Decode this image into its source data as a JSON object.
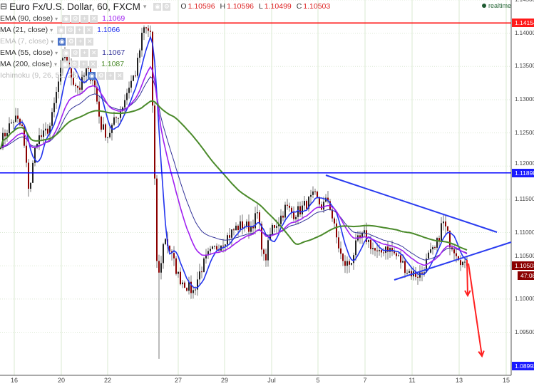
{
  "header": {
    "symbol": "Euro Fx/U.S. Dollar, 60, FXCM",
    "ohlc": {
      "o_label": "O",
      "o": "1.10596",
      "h_label": "H",
      "h": "1.10596",
      "l_label": "L",
      "l": "1.10499",
      "c_label": "C",
      "c": "1.10503"
    }
  },
  "indicators": [
    {
      "name": "EMA (90, close)",
      "value": "1.1069",
      "color": "#a020f0",
      "hidden": false
    },
    {
      "name": "MA (21, close)",
      "value": "1.1066",
      "color": "#2233ee",
      "hidden": false
    },
    {
      "name": "EMA (7, close)",
      "value": "",
      "color": "#bbbbbb",
      "hidden": true
    },
    {
      "name": "EMA (55, close)",
      "value": "1.1067",
      "color": "#333399",
      "hidden": false
    },
    {
      "name": "MA (200, close)",
      "value": "1.1087",
      "color": "#4a8a2a",
      "hidden": false
    },
    {
      "name": "Ichimoku (9, 26, 52, 26)",
      "value": "",
      "color": "#aaaaaa",
      "hidden": true
    }
  ],
  "realtime_label": "realtime",
  "price_axis": {
    "ticks": [
      "1.14500",
      "1.14000",
      "1.13500",
      "1.13000",
      "1.12500",
      "1.12000",
      "1.11500",
      "1.11000",
      "1.10500",
      "1.10000",
      "1.09500"
    ],
    "labels": {
      "red_line": "1.14154",
      "blue_line": "1.11898",
      "last": "1.10503",
      "countdown": "47:08",
      "bottom_line": "1.08993"
    }
  },
  "time_axis": {
    "ticks": [
      "16",
      "20",
      "22",
      "27",
      "29",
      "Jul",
      "5",
      "7",
      "11",
      "13",
      "15"
    ]
  },
  "chart_data": {
    "type": "candlestick",
    "ylim": [
      1.088,
      1.145
    ],
    "closes": [
      1.1236,
      1.1257,
      1.1273,
      1.1257,
      1.1161,
      1.1241,
      1.1246,
      1.1262,
      1.1321,
      1.137,
      1.1332,
      1.1316,
      1.1343,
      1.1332,
      1.1262,
      1.1246,
      1.1268,
      1.1289,
      1.1321,
      1.1343,
      1.1407,
      1.1402,
      1.1021,
      1.1096,
      1.1064,
      1.1032,
      1.1021,
      1.1011,
      1.1043,
      1.1064,
      1.1075,
      1.1086,
      1.1096,
      1.1107,
      1.1112,
      1.1107,
      1.1128,
      1.1053,
      1.1107,
      1.1118,
      1.1139,
      1.1128,
      1.1134,
      1.1145,
      1.1155,
      1.1139,
      1.115,
      1.1096,
      1.1053,
      1.1053,
      1.1086,
      1.1096,
      1.108,
      1.1064,
      1.108,
      1.107,
      1.1059,
      1.1043,
      1.1037,
      1.1037,
      1.1064,
      1.1075,
      1.1118,
      1.1086,
      1.107,
      1.105
    ],
    "horizontal_lines": [
      {
        "price": 1.14154,
        "color": "#ff0000"
      },
      {
        "price": 1.11898,
        "color": "#0000ff"
      }
    ],
    "colors": {
      "up": "#222222",
      "down": "#8b0000",
      "ema90": "#a020f0",
      "ma21": "#2233ee",
      "ema55": "#333399",
      "ma200": "#4a8a2a",
      "trend": "#2a3cf0",
      "arrow": "#ff2020"
    }
  }
}
